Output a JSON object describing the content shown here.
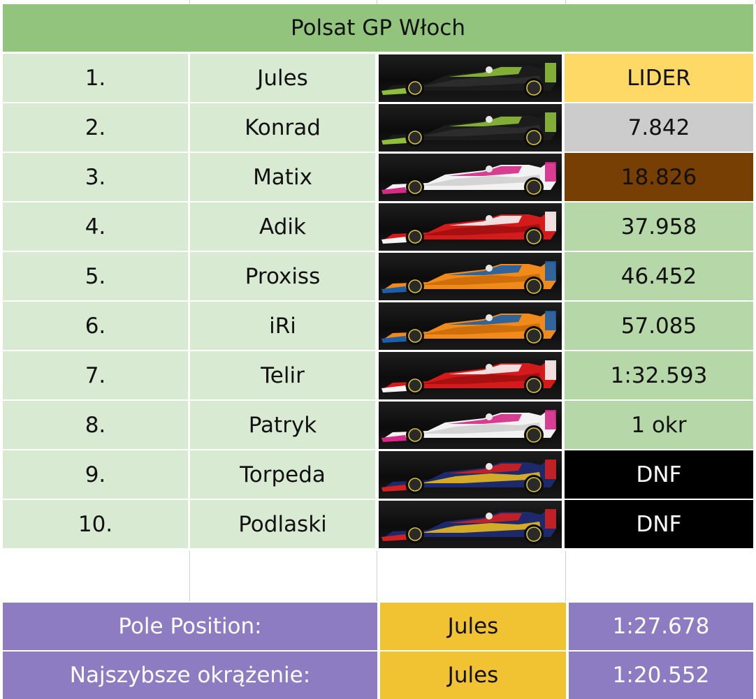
{
  "title": "Polsat GP Włoch",
  "rows": [
    {
      "pos": "1.",
      "name": "Jules",
      "car": "car-black-green",
      "gap": "LIDER",
      "gap_bg": "#ffd966",
      "gap_fg": "#111111"
    },
    {
      "pos": "2.",
      "name": "Konrad",
      "car": "car-black-green",
      "gap": "7.842",
      "gap_bg": "#cccccc",
      "gap_fg": "#111111"
    },
    {
      "pos": "3.",
      "name": "Matix",
      "car": "car-white-pink",
      "gap": "18.826",
      "gap_bg": "#783f04",
      "gap_fg": "#111111"
    },
    {
      "pos": "4.",
      "name": "Adik",
      "car": "car-red",
      "gap": "37.958",
      "gap_bg": "#b6d7a8",
      "gap_fg": "#111111"
    },
    {
      "pos": "5.",
      "name": "Proxiss",
      "car": "car-orange",
      "gap": "46.452",
      "gap_bg": "#b6d7a8",
      "gap_fg": "#111111"
    },
    {
      "pos": "6.",
      "name": "iRi",
      "car": "car-orange",
      "gap": "57.085",
      "gap_bg": "#b6d7a8",
      "gap_fg": "#111111"
    },
    {
      "pos": "7.",
      "name": "Telir",
      "car": "car-red",
      "gap": "1:32.593",
      "gap_bg": "#b6d7a8",
      "gap_fg": "#111111"
    },
    {
      "pos": "8.",
      "name": "Patryk",
      "car": "car-white-pink",
      "gap": "1 okr",
      "gap_bg": "#b6d7a8",
      "gap_fg": "#111111"
    },
    {
      "pos": "9.",
      "name": "Torpeda",
      "car": "car-blue-red",
      "gap": "DNF",
      "gap_bg": "#000000",
      "gap_fg": "#ffffff"
    },
    {
      "pos": "10.",
      "name": "Podlaski",
      "car": "car-blue-red",
      "gap": "DNF",
      "gap_bg": "#000000",
      "gap_fg": "#ffffff"
    }
  ],
  "pole": {
    "label": "Pole Position:",
    "driver": "Jules",
    "time": "1:27.678"
  },
  "fastest_lap": {
    "label": "Najszybsze okrążenie:",
    "driver": "Jules",
    "time": "1:20.552"
  },
  "colors": {
    "title_bg": "#93c47d",
    "cell_bg": "#d9ead3",
    "footer_label_bg": "#8e7cc3",
    "footer_driver_bg": "#f1c232"
  },
  "car_liveries": {
    "car-black-green": {
      "body": "#1c1c1c",
      "accent": "#8fbf3a",
      "trim": "#2f2f2f"
    },
    "car-white-pink": {
      "body": "#f2f2f2",
      "accent": "#d42a86",
      "trim": "#cfcfcf"
    },
    "car-red": {
      "body": "#d41a1a",
      "accent": "#f4f4f4",
      "trim": "#9e0f0f"
    },
    "car-orange": {
      "body": "#f08a1a",
      "accent": "#1b5fa8",
      "trim": "#c86a0a"
    },
    "car-blue-red": {
      "body": "#1c2a6b",
      "accent": "#d32020",
      "trim": "#f3c21b"
    }
  }
}
